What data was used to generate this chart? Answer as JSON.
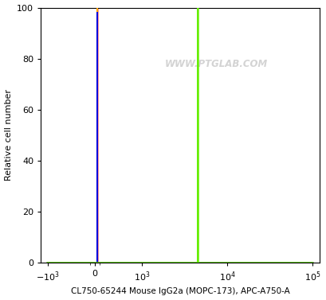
{
  "xlabel": "CL750-65244 Mouse IgG2a (MOPC-173), APC-A750-A",
  "ylabel": "Relative cell number",
  "ylim": [
    0,
    100
  ],
  "yticks": [
    0,
    20,
    40,
    60,
    80,
    100
  ],
  "watermark": "WWW.PTGLAB.COM",
  "background_color": "#ffffff",
  "red_fill_color": "#ff0000",
  "blue_line_color": "#0000dd",
  "orange_line_color": "#ffa500",
  "green_line_color": "#66ee00",
  "linthresh": 1000,
  "linscale": 0.5
}
